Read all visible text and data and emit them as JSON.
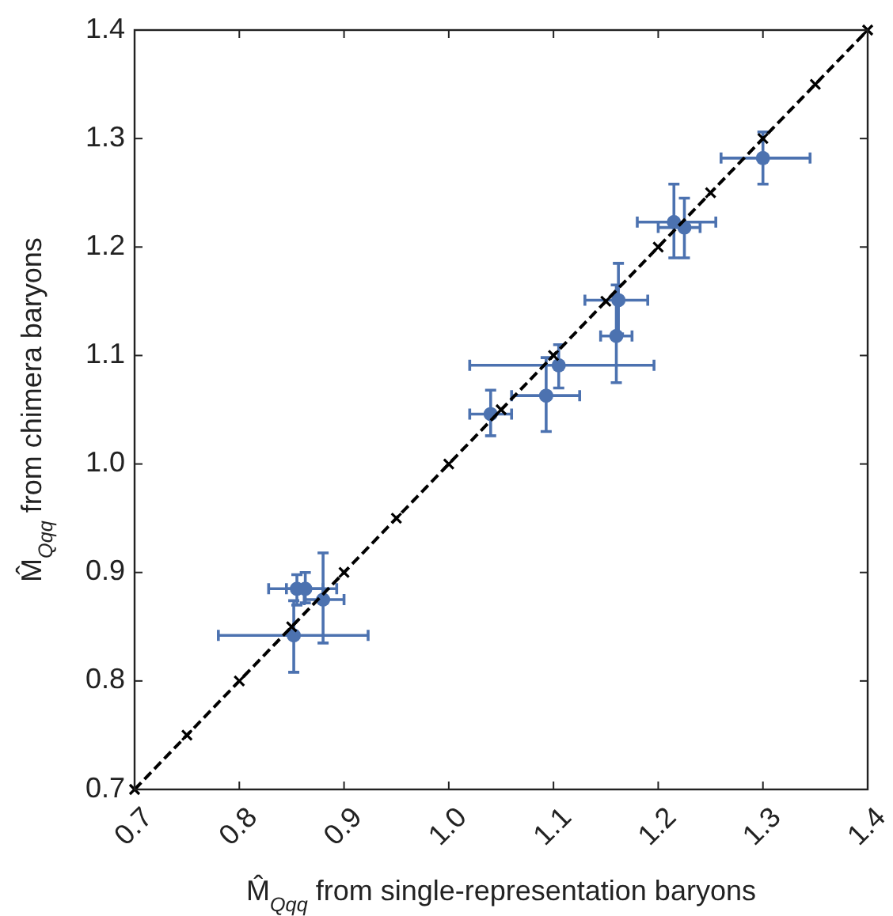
{
  "chart_data": {
    "type": "scatter",
    "xlabel": "M̂$_{Qqq}$ from single-representation baryons",
    "ylabel": "M̂$_{Qqq}$ from chimera baryons",
    "xlim": [
      0.7,
      1.4
    ],
    "ylim": [
      0.7,
      1.4
    ],
    "xticks": [
      {
        "value": 0.7,
        "label": "0.7"
      },
      {
        "value": 0.8,
        "label": "0.8"
      },
      {
        "value": 0.9,
        "label": "0.9"
      },
      {
        "value": 1.0,
        "label": "1.0"
      },
      {
        "value": 1.1,
        "label": "1.1"
      },
      {
        "value": 1.2,
        "label": "1.2"
      },
      {
        "value": 1.3,
        "label": "1.3"
      },
      {
        "value": 1.4,
        "label": "1.4"
      }
    ],
    "yticks": [
      {
        "value": 0.7,
        "label": "0.7"
      },
      {
        "value": 0.8,
        "label": "0.8"
      },
      {
        "value": 0.9,
        "label": "0.9"
      },
      {
        "value": 1.0,
        "label": "1.0"
      },
      {
        "value": 1.1,
        "label": "1.1"
      },
      {
        "value": 1.2,
        "label": "1.2"
      },
      {
        "value": 1.3,
        "label": "1.3"
      },
      {
        "value": 1.4,
        "label": "1.4"
      }
    ],
    "grid": false,
    "series": [
      {
        "color": "#4c72b0",
        "marker": "circle",
        "x": [
          0.852,
          0.855,
          0.863,
          0.88,
          1.04,
          1.093,
          1.105,
          1.16,
          1.162,
          1.215,
          1.225,
          1.3
        ],
        "values": [
          0.842,
          0.885,
          0.885,
          0.875,
          1.046,
          1.063,
          1.091,
          1.118,
          1.151,
          1.223,
          1.218,
          1.282
        ],
        "xerrors": [
          [
            0.78,
            0.923
          ],
          [
            0.828,
            0.893
          ],
          [
            0.845,
            0.88
          ],
          [
            0.862,
            0.9
          ],
          [
            1.02,
            1.06
          ],
          [
            1.06,
            1.125
          ],
          [
            1.02,
            1.196
          ],
          [
            1.145,
            1.175
          ],
          [
            1.13,
            1.19
          ],
          [
            1.18,
            1.255
          ],
          [
            1.2,
            1.24
          ],
          [
            1.26,
            1.345
          ]
        ],
        "errors": [
          [
            0.808,
            0.874
          ],
          [
            0.87,
            0.898
          ],
          [
            0.872,
            0.9
          ],
          [
            0.835,
            0.918
          ],
          [
            1.026,
            1.068
          ],
          [
            1.03,
            1.098
          ],
          [
            1.07,
            1.11
          ],
          [
            1.075,
            1.165
          ],
          [
            1.12,
            1.185
          ],
          [
            1.19,
            1.258
          ],
          [
            1.19,
            1.245
          ],
          [
            1.258,
            1.306
          ]
        ]
      },
      {
        "type": "line",
        "color": "#000000",
        "marker": "cross",
        "line_style": "dashed",
        "x": [
          0.7,
          0.75,
          0.8,
          0.85,
          0.9,
          0.95,
          1.0,
          1.05,
          1.1,
          1.15,
          1.2,
          1.25,
          1.3,
          1.35,
          1.4
        ],
        "values": [
          0.7,
          0.75,
          0.8,
          0.85,
          0.9,
          0.95,
          1.0,
          1.05,
          1.1,
          1.15,
          1.2,
          1.25,
          1.3,
          1.35,
          1.4
        ]
      }
    ]
  }
}
